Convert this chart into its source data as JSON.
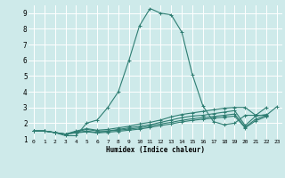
{
  "xlabel": "Humidex (Indice chaleur)",
  "xlim": [
    -0.5,
    23.5
  ],
  "ylim": [
    1,
    9.5
  ],
  "xtick_vals": [
    0,
    1,
    2,
    3,
    4,
    5,
    6,
    7,
    8,
    9,
    10,
    11,
    12,
    13,
    14,
    15,
    16,
    17,
    18,
    19,
    20,
    21,
    22,
    23
  ],
  "xtick_labels": [
    "0",
    "1",
    "2",
    "3",
    "4",
    "5",
    "6",
    "7",
    "8",
    "9",
    "10",
    "11",
    "12",
    "13",
    "14",
    "15",
    "16",
    "17",
    "18",
    "19",
    "20",
    "21",
    "22",
    "23"
  ],
  "ytick_vals": [
    1,
    2,
    3,
    4,
    5,
    6,
    7,
    8,
    9
  ],
  "ytick_labels": [
    "1",
    "2",
    "3",
    "4",
    "5",
    "6",
    "7",
    "8",
    "9"
  ],
  "background_color": "#ceeaea",
  "grid_color": "#ffffff",
  "line_color": "#2e7d72",
  "lines": [
    {
      "x": [
        0,
        1,
        2,
        3,
        4,
        5,
        6,
        7,
        8,
        9,
        10,
        11,
        12,
        13,
        14,
        15,
        16,
        17,
        18,
        19,
        20,
        21,
        22
      ],
      "y": [
        1.5,
        1.5,
        1.4,
        1.2,
        1.2,
        2.0,
        2.2,
        3.0,
        4.0,
        6.0,
        8.2,
        9.3,
        9.0,
        8.9,
        7.8,
        5.1,
        3.1,
        2.1,
        1.9,
        2.0,
        2.5,
        2.5,
        3.0
      ]
    },
    {
      "x": [
        0,
        1,
        2,
        3,
        4,
        5,
        6,
        7,
        8,
        9,
        10,
        11,
        12,
        13,
        14,
        15,
        16,
        17,
        18,
        19,
        20,
        21,
        22,
        23
      ],
      "y": [
        1.5,
        1.5,
        1.4,
        1.3,
        1.5,
        1.65,
        1.55,
        1.6,
        1.7,
        1.8,
        1.95,
        2.05,
        2.2,
        2.4,
        2.55,
        2.65,
        2.75,
        2.85,
        2.95,
        3.0,
        3.0,
        2.5,
        2.5,
        3.05
      ]
    },
    {
      "x": [
        0,
        1,
        2,
        3,
        4,
        5,
        6,
        7,
        8,
        9,
        10,
        11,
        12,
        13,
        14,
        15,
        16,
        17,
        18,
        19,
        20,
        21,
        22
      ],
      "y": [
        1.5,
        1.5,
        1.4,
        1.3,
        1.45,
        1.6,
        1.5,
        1.5,
        1.6,
        1.7,
        1.8,
        1.9,
        2.05,
        2.2,
        2.35,
        2.45,
        2.5,
        2.6,
        2.7,
        2.8,
        1.85,
        2.45,
        2.55
      ]
    },
    {
      "x": [
        0,
        1,
        2,
        3,
        4,
        5,
        6,
        7,
        8,
        9,
        10,
        11,
        12,
        13,
        14,
        15,
        16,
        17,
        18,
        19,
        20,
        21,
        22
      ],
      "y": [
        1.5,
        1.5,
        1.4,
        1.3,
        1.4,
        1.5,
        1.4,
        1.5,
        1.55,
        1.62,
        1.7,
        1.82,
        1.95,
        2.05,
        2.18,
        2.28,
        2.35,
        2.42,
        2.5,
        2.58,
        1.75,
        2.25,
        2.5
      ]
    },
    {
      "x": [
        0,
        1,
        2,
        3,
        4,
        5,
        6,
        7,
        8,
        9,
        10,
        11,
        12,
        13,
        14,
        15,
        16,
        17,
        18,
        19,
        20,
        21,
        22
      ],
      "y": [
        1.5,
        1.5,
        1.4,
        1.3,
        1.38,
        1.45,
        1.38,
        1.42,
        1.48,
        1.55,
        1.62,
        1.73,
        1.85,
        1.95,
        2.08,
        2.18,
        2.25,
        2.32,
        2.38,
        2.45,
        1.7,
        2.15,
        2.42
      ]
    }
  ]
}
